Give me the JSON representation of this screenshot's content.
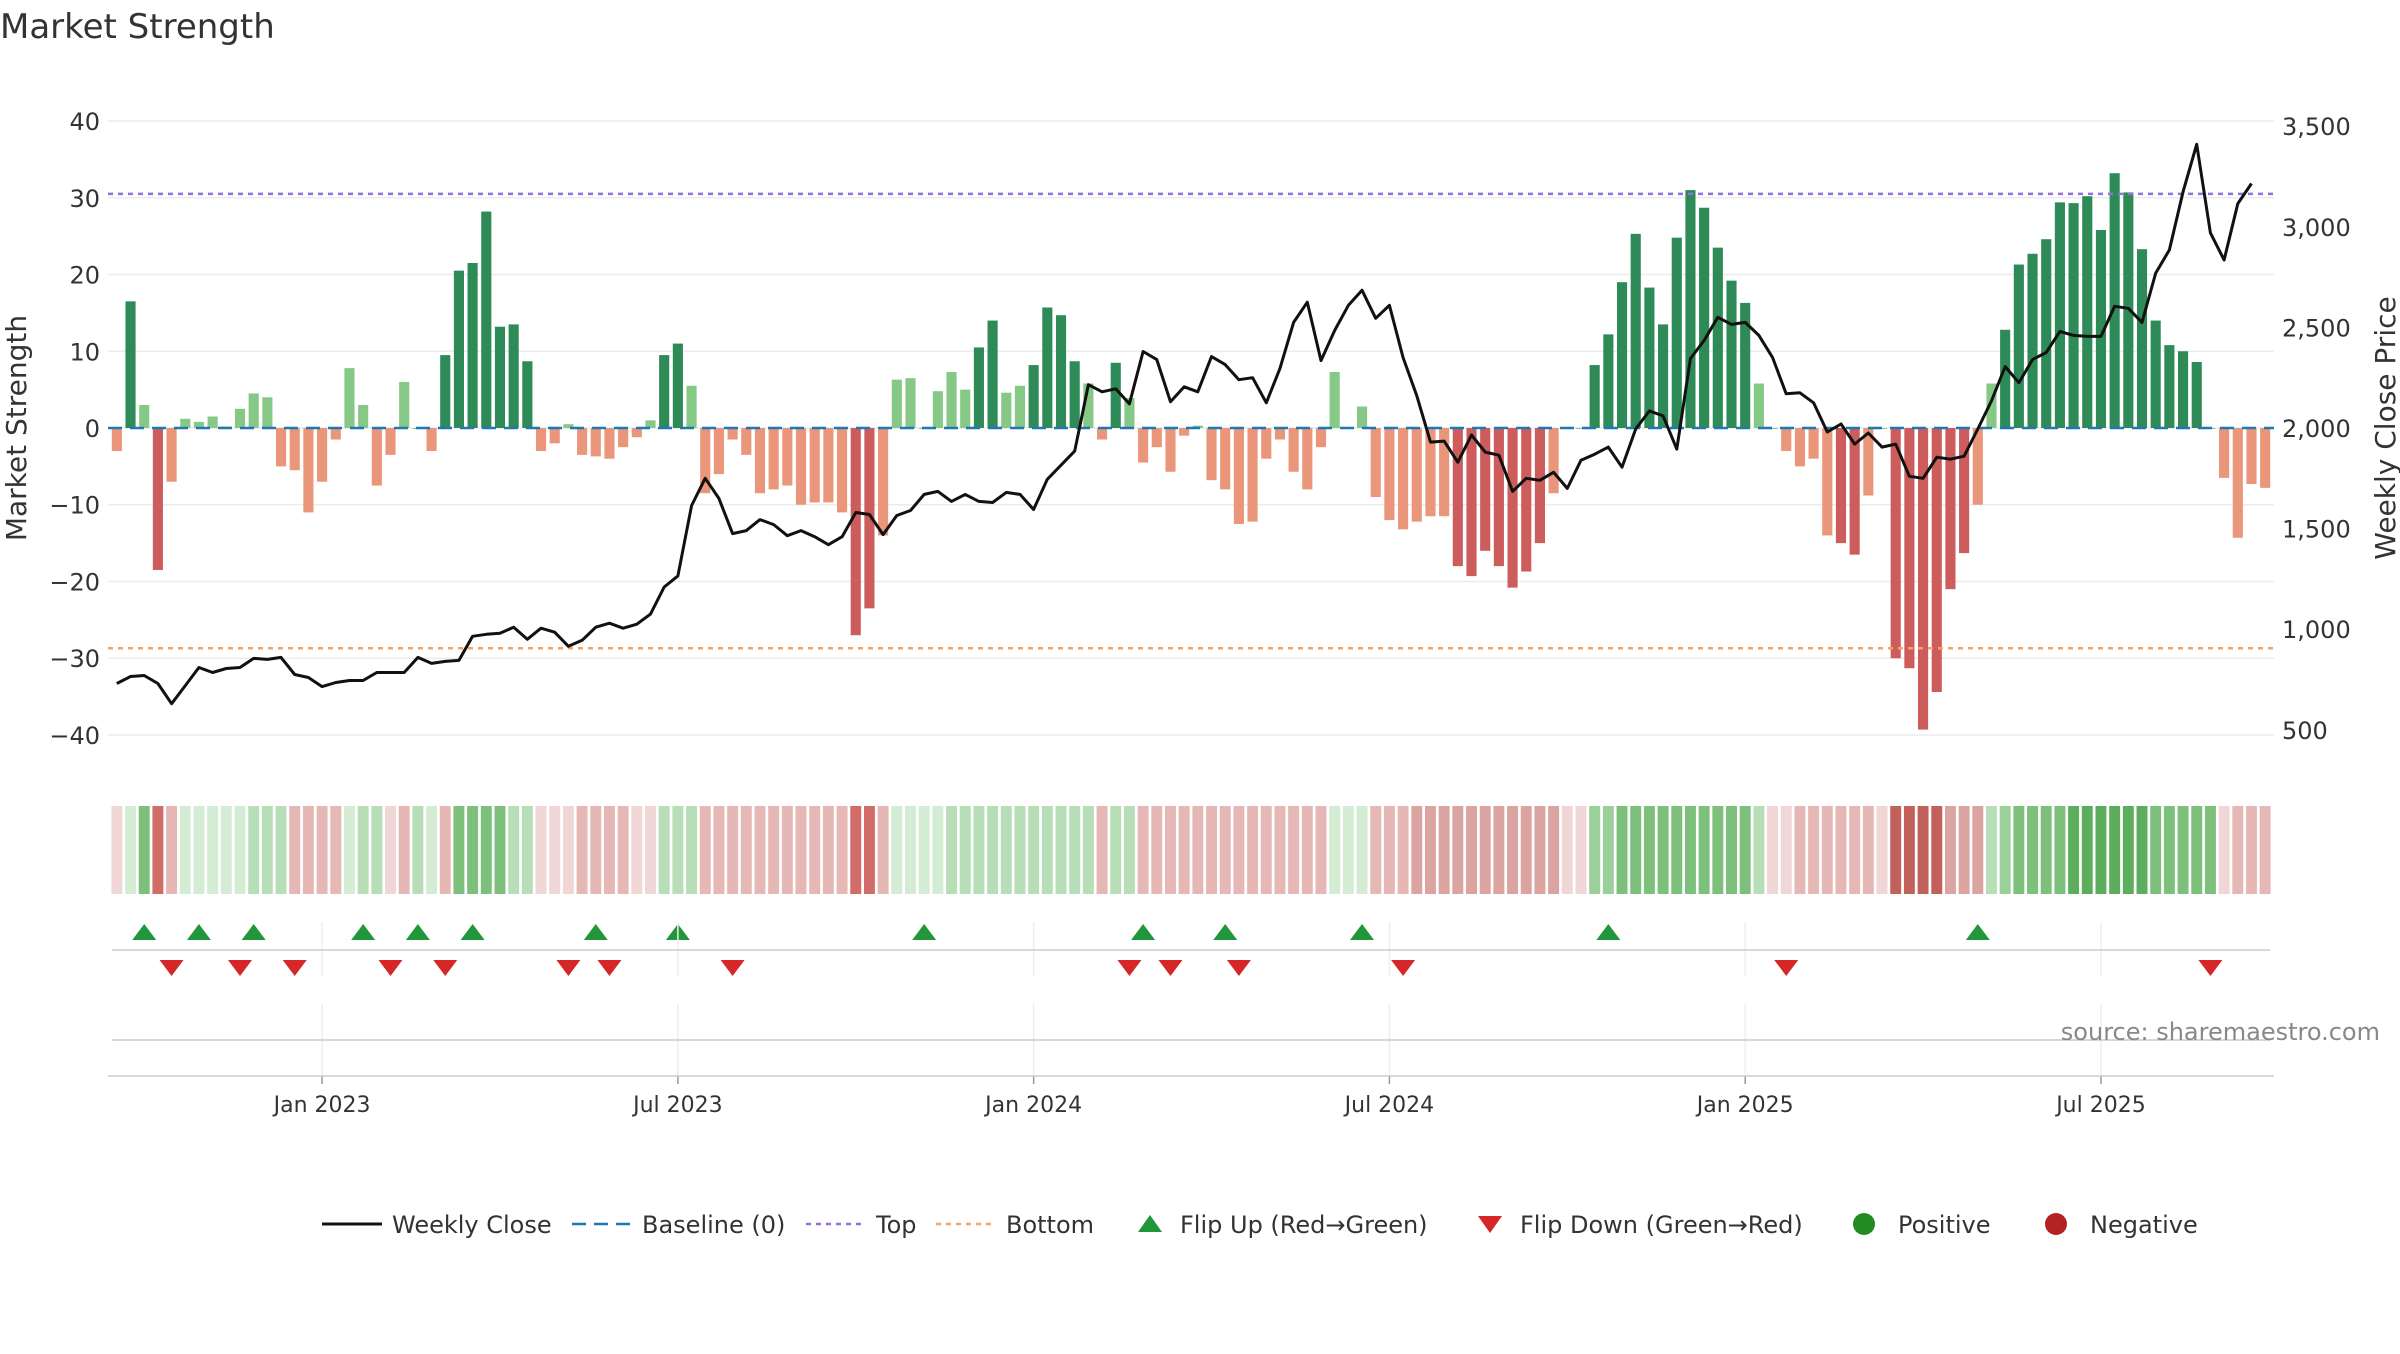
{
  "chart_data": {
    "type": "bar",
    "title": "Market Strength",
    "ylabel_left": "Market Strength",
    "ylabel_right": "Weekly Close Price",
    "ylim_left": [
      -43,
      43
    ],
    "ylim_right": [
      360,
      3640
    ],
    "left_ticks": [
      {
        "v": 40,
        "label": "40"
      },
      {
        "v": 30,
        "label": "30"
      },
      {
        "v": 20,
        "label": "20"
      },
      {
        "v": 10,
        "label": "10"
      },
      {
        "v": 0,
        "label": "0"
      },
      {
        "v": -10,
        "label": "−10"
      },
      {
        "v": -20,
        "label": "−20"
      },
      {
        "v": -30,
        "label": "−30"
      },
      {
        "v": -40,
        "label": "−40"
      }
    ],
    "right_ticks": [
      {
        "v": 3500,
        "label": "3,500"
      },
      {
        "v": 3000,
        "label": "3,000"
      },
      {
        "v": 2500,
        "label": "2,500"
      },
      {
        "v": 2000,
        "label": "2,000"
      },
      {
        "v": 1500,
        "label": "1,500"
      },
      {
        "v": 1000,
        "label": "1,000"
      },
      {
        "v": 500,
        "label": "500"
      }
    ],
    "top_line": 30.5,
    "bottom_line": -28.7,
    "x_ticks": [
      {
        "week": 15,
        "label": "Jan 2023"
      },
      {
        "week": 41,
        "label": "Jul 2023"
      },
      {
        "week": 67,
        "label": "Jan 2024"
      },
      {
        "week": 93,
        "label": "Jul 2024"
      },
      {
        "week": 119,
        "label": "Jan 2025"
      },
      {
        "week": 145,
        "label": "Jul 2025"
      }
    ],
    "strength": [
      -3,
      16.5,
      3,
      -18.5,
      -7,
      1.2,
      0.8,
      1.5,
      0.2,
      2.5,
      4.5,
      4,
      -5,
      -5.5,
      -11,
      -7,
      -1.5,
      7.8,
      3,
      -7.5,
      -3.5,
      6,
      0,
      -3,
      9.5,
      20.5,
      21.5,
      28.2,
      13.2,
      13.5,
      8.7,
      -3,
      -2,
      0.5,
      -3.5,
      -3.7,
      -4,
      -2.5,
      -1.2,
      1,
      9.5,
      11,
      5.5,
      -8.5,
      -6,
      -1.5,
      -3.5,
      -8.5,
      -8,
      -7.5,
      -10,
      -9.7,
      -9.7,
      -11,
      -27,
      -23.5,
      -14,
      6.3,
      6.5,
      0,
      4.8,
      7.3,
      5,
      10.5,
      14,
      4.6,
      5.5,
      8.2,
      15.7,
      14.7,
      8.7,
      5.8,
      -1.5,
      8.5,
      3.9,
      -4.5,
      -2.5,
      -5.7,
      -1,
      0.3,
      -6.8,
      -8,
      -12.5,
      -12.2,
      -4,
      -1.5,
      -5.7,
      -8,
      -2.5,
      7.3,
      0,
      2.8,
      -9,
      -12,
      -13.2,
      -12.2,
      -11.5,
      -11.5,
      -18,
      -19.3,
      -16,
      -18,
      -20.8,
      -18.7,
      -15,
      -8.5,
      0,
      0,
      8.2,
      12.2,
      19,
      25.3,
      18.3,
      13.5,
      24.8,
      31,
      28.7,
      23.5,
      19.2,
      16.3,
      5.8,
      0,
      -3,
      -5,
      -4,
      -14,
      -15,
      -16.5,
      -8.8,
      0,
      -30,
      -31.3,
      -39.3,
      -34.4,
      -21,
      -16.3,
      -10,
      5.8,
      12.8,
      21.3,
      22.7,
      24.6,
      29.4,
      29.3,
      30.2,
      25.8,
      33.2,
      30.7,
      23.3,
      14,
      10.8,
      10,
      8.6,
      0,
      -6.5,
      -14.3,
      -7.3,
      -7.8
    ],
    "close": [
      730,
      765,
      770,
      730,
      630,
      720,
      810,
      785,
      805,
      810,
      855,
      850,
      860,
      775,
      760,
      715,
      735,
      745,
      745,
      785,
      785,
      785,
      860,
      830,
      840,
      845,
      965,
      975,
      980,
      1010,
      950,
      1005,
      985,
      915,
      945,
      1010,
      1030,
      1005,
      1025,
      1075,
      1210,
      1265,
      1615,
      1750,
      1650,
      1475,
      1490,
      1545,
      1520,
      1465,
      1490,
      1460,
      1420,
      1460,
      1580,
      1570,
      1470,
      1565,
      1590,
      1670,
      1685,
      1635,
      1670,
      1635,
      1630,
      1680,
      1670,
      1595,
      1745,
      1815,
      1885,
      2215,
      2180,
      2195,
      2120,
      2380,
      2340,
      2130,
      2205,
      2180,
      2355,
      2315,
      2240,
      2250,
      2125,
      2295,
      2525,
      2625,
      2335,
      2485,
      2610,
      2685,
      2545,
      2610,
      2350,
      2160,
      1930,
      1935,
      1830,
      1965,
      1880,
      1865,
      1685,
      1750,
      1740,
      1780,
      1700,
      1840,
      1870,
      1905,
      1805,
      1995,
      2085,
      2060,
      1895,
      2345,
      2435,
      2550,
      2515,
      2525,
      2460,
      2350,
      2170,
      2175,
      2125,
      1980,
      2020,
      1920,
      1975,
      1905,
      1920,
      1760,
      1750,
      1855,
      1845,
      1860,
      1995,
      2135,
      2305,
      2225,
      2340,
      2375,
      2480,
      2460,
      2455,
      2455,
      2605,
      2595,
      2525,
      2770,
      2885,
      3175,
      3410,
      2970,
      2835,
      3115,
      3215
    ],
    "week_colors": [
      "#f0d6d4",
      "#d4ecd4",
      "#7cc07c",
      "#d16c68",
      "#e6b8b5",
      "#d4ecd4",
      "#d4ecd4",
      "#d4ecd4",
      "#d4ecd4",
      "#d4ecd4",
      "#b8deb8",
      "#b8deb8",
      "#b8deb8",
      "#e6b8b5",
      "#e6b8b5",
      "#e6b8b5",
      "#e6b8b5",
      "#d4ecd4",
      "#b8deb8",
      "#b8deb8",
      "#f0d6d4",
      "#e6b8b5",
      "#b8deb8",
      "#d4ecd4",
      "#e6b8b5",
      "#7cc07c",
      "#7cc07c",
      "#7cc07c",
      "#7cc07c",
      "#b8deb8",
      "#b8deb8",
      "#f0d6d4",
      "#f0d6d4",
      "#f0d6d4",
      "#e6b8b5",
      "#e6b8b5",
      "#e6b8b5",
      "#e6b8b5",
      "#f0d6d4",
      "#f0d6d4",
      "#b8deb8",
      "#b8deb8",
      "#b8deb8",
      "#e6b8b5",
      "#e6b8b5",
      "#e6b8b5",
      "#e6b8b5",
      "#e6b8b5",
      "#e6b8b5",
      "#e6b8b5",
      "#e6b8b5",
      "#e6b8b5",
      "#e6b8b5",
      "#e6b8b5",
      "#d16c68",
      "#d16c68",
      "#e6b8b5",
      "#d4ecd4",
      "#d4ecd4",
      "#d4ecd4",
      "#d4ecd4",
      "#b8deb8",
      "#b8deb8",
      "#b8deb8",
      "#b8deb8",
      "#b8deb8",
      "#b8deb8",
      "#b8deb8",
      "#b8deb8",
      "#b8deb8",
      "#b8deb8",
      "#b8deb8",
      "#e6b8b5",
      "#b8deb8",
      "#b8deb8",
      "#e6b8b5",
      "#e6b8b5",
      "#e6b8b5",
      "#e6b8b5",
      "#e6b8b5",
      "#e6b8b5",
      "#e6b8b5",
      "#e6b8b5",
      "#e6b8b5",
      "#e6b8b5",
      "#e6b8b5",
      "#e6b8b5",
      "#e6b8b5",
      "#e6b8b5",
      "#d4ecd4",
      "#d4ecd4",
      "#d4ecd4",
      "#e6b8b5",
      "#e6b8b5",
      "#e6b8b5",
      "#dca4a1",
      "#dca4a1",
      "#dca4a1",
      "#dca4a1",
      "#dca4a1",
      "#dca4a1",
      "#dca4a1",
      "#dca4a1",
      "#dca4a1",
      "#dca4a1",
      "#dca4a1",
      "#f0d6d4",
      "#f0d6d4",
      "#9bd09b",
      "#9bd09b",
      "#7cc07c",
      "#7cc07c",
      "#7cc07c",
      "#7cc07c",
      "#7cc07c",
      "#7cc07c",
      "#7cc07c",
      "#7cc07c",
      "#7cc07c",
      "#7cc07c",
      "#b8deb8",
      "#f0d6d4",
      "#f0d6d4",
      "#e6b8b5",
      "#e6b8b5",
      "#e6b8b5",
      "#e6b8b5",
      "#e6b8b5",
      "#e6b8b5",
      "#f0d6d4",
      "#c2605c",
      "#c2605c",
      "#c2605c",
      "#c2605c",
      "#dca4a1",
      "#dca4a1",
      "#dca4a1",
      "#b8deb8",
      "#9bd09b",
      "#7cc07c",
      "#7cc07c",
      "#7cc07c",
      "#7cc07c",
      "#5cae5c",
      "#5cae5c",
      "#5cae5c",
      "#5cae5c",
      "#5cae5c",
      "#5cae5c",
      "#7cc07c",
      "#7cc07c",
      "#7cc07c",
      "#7cc07c",
      "#7cc07c",
      "#f0d6d4",
      "#e6b8b5",
      "#e6b8b5",
      "#e6b8b5"
    ],
    "flip_up_weeks": [
      2,
      6,
      10,
      18,
      22,
      26,
      35,
      41,
      59,
      75,
      81,
      91,
      109,
      136
    ],
    "flip_down_weeks": [
      4,
      9,
      13,
      20,
      24,
      33,
      36,
      45,
      74,
      77,
      82,
      94,
      122,
      153
    ],
    "legend": [
      "Weekly Close",
      "Baseline (0)",
      "Top",
      "Bottom",
      "Flip Up (Red→Green)",
      "Flip Down (Green→Red)",
      "Positive",
      "Negative"
    ],
    "annotation": "source: sharemaestro.com",
    "colors": {
      "bar_pos_dark": "#2e8b57",
      "bar_pos_light": "#86c986",
      "bar_neg_dark": "#cd5c5c",
      "bar_neg_light": "#e9967a",
      "top_line": "#9370db",
      "bottom_line": "#f4a460",
      "baseline": "#1f77b4",
      "close_line": "#111111",
      "flip_up": "#21963a",
      "flip_down": "#d62728",
      "positive_dot": "#228b22",
      "negative_dot": "#b22222"
    }
  }
}
